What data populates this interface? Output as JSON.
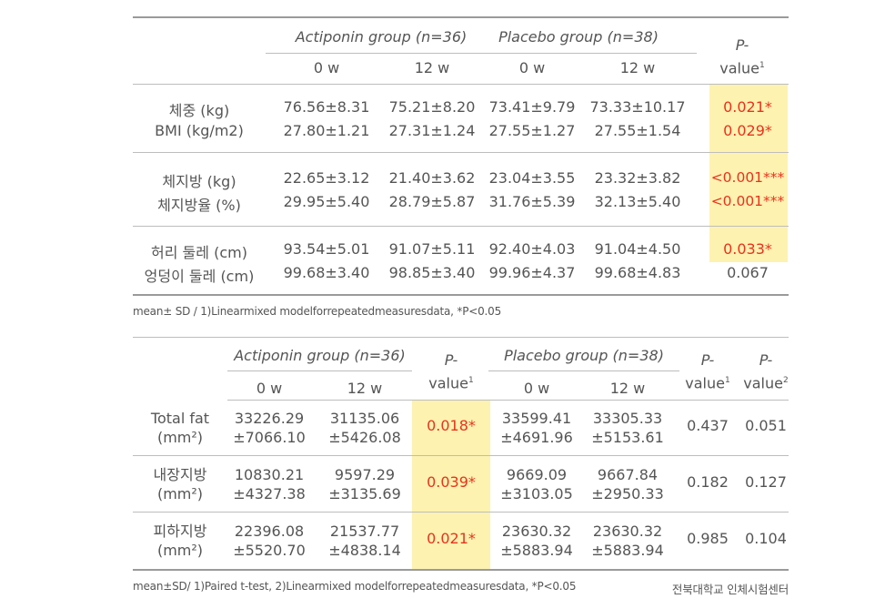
{
  "table1": {
    "group_a": "Actiponin group (n=36)",
    "group_b": "Placebo group (n=38)",
    "p_label_1": "P-",
    "p_label_2": "value",
    "p_sup": "1",
    "week0": "0 w",
    "week12": "12 w",
    "rows": [
      {
        "label": "체중 (kg)",
        "a0": "76.56±8.31",
        "a12": "75.21±8.20",
        "b0": "73.41±9.79",
        "b12": "73.33±10.17",
        "p": "0.021*",
        "sig": true
      },
      {
        "label": "BMI (kg/m2)",
        "a0": "27.80±1.21",
        "a12": "27.31±1.24",
        "b0": "27.55±1.27",
        "b12": "27.55±1.54",
        "p": "0.029*",
        "sig": true
      },
      {
        "label": "체지방 (kg)",
        "a0": "22.65±3.12",
        "a12": "21.40±3.62",
        "b0": "23.04±3.55",
        "b12": "23.32±3.82",
        "p": "<0.001***",
        "sig": true
      },
      {
        "label": "체지방율 (%)",
        "a0": "29.95±5.40",
        "a12": "28.79±5.87",
        "b0": "31.76±5.39",
        "b12": "32.13±5.40",
        "p": "<0.001***",
        "sig": true
      },
      {
        "label": "허리 둘레 (cm)",
        "a0": "93.54±5.01",
        "a12": "91.07±5.11",
        "b0": "92.40±4.03",
        "b12": "91.04±4.50",
        "p": "0.033*",
        "sig": true
      },
      {
        "label": "엉덩이 둘레 (cm)",
        "a0": "99.68±3.40",
        "a12": "98.85±3.40",
        "b0": "99.96±4.37",
        "b12": "99.68±4.83",
        "p": "0.067",
        "sig": false
      }
    ],
    "note": "mean± SD / 1)Linearmixed modelforrepeatedmeasuresdata, *P<0.05"
  },
  "table2": {
    "group_a": "Actiponin group (n=36)",
    "group_b": "Placebo group (n=38)",
    "p_label_1": "P-",
    "p_label_2": "value",
    "p_sup1": "1",
    "p_sup2": "2",
    "week0": "0 w",
    "week12": "12 w",
    "rows": [
      {
        "label1": "Total fat",
        "label2": "(mm²)",
        "a0_1": "33226.29",
        "a0_2": "±7066.10",
        "a12_1": "31135.06",
        "a12_2": "±5426.08",
        "pa": "0.018*",
        "b0_1": "33599.41",
        "b0_2": "±4691.96",
        "b12_1": "33305.33",
        "b12_2": "±5153.61",
        "pb": "0.437",
        "p2": "0.051"
      },
      {
        "label1": "내장지방",
        "label2": "(mm²)",
        "a0_1": "10830.21",
        "a0_2": "±4327.38",
        "a12_1": "9597.29",
        "a12_2": "±3135.69",
        "pa": "0.039*",
        "b0_1": "9669.09",
        "b0_2": "±3103.05",
        "b12_1": "9667.84",
        "b12_2": "±2950.33",
        "pb": "0.182",
        "p2": "0.127"
      },
      {
        "label1": "피하지방",
        "label2": "(mm²)",
        "a0_1": "22396.08",
        "a0_2": "±5520.70",
        "a12_1": "21537.77",
        "a12_2": "±4838.14",
        "pa": "0.021*",
        "b0_1": "23630.32",
        "b0_2": "±5883.94",
        "b12_1": "23630.32",
        "b12_2": "±5883.94",
        "pb": "0.985",
        "p2": "0.104"
      }
    ],
    "note": "mean±SD/ 1)Paired t-test, 2)Linearmixed modelforrepeatedmeasuresdata, *P<0.05",
    "source": "전북대학교 인체시험센터"
  },
  "colors": {
    "highlight": "#fdf2b0",
    "significant": "#e8321e",
    "text": "#555555"
  }
}
